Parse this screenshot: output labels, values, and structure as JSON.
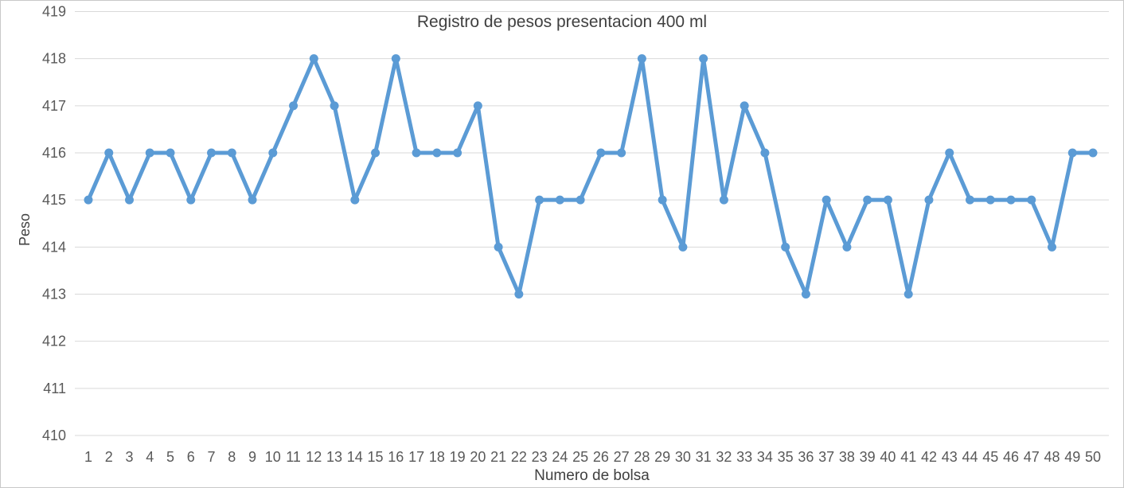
{
  "window": {
    "background_color": "#ffffff",
    "border_color": "#c9c9c9"
  },
  "chart_data": {
    "type": "line",
    "title": "Registro de pesos presentacion 400 ml",
    "xlabel": "Numero de bolsa",
    "ylabel": "Peso",
    "categories": [
      1,
      2,
      3,
      4,
      5,
      6,
      7,
      8,
      9,
      10,
      11,
      12,
      13,
      14,
      15,
      16,
      17,
      18,
      19,
      20,
      21,
      22,
      23,
      24,
      25,
      26,
      27,
      28,
      29,
      30,
      31,
      32,
      33,
      34,
      35,
      36,
      37,
      38,
      39,
      40,
      41,
      42,
      43,
      44,
      45,
      46,
      47,
      48,
      49,
      50
    ],
    "values": [
      415,
      416,
      415,
      416,
      416,
      415,
      416,
      416,
      415,
      416,
      417,
      418,
      417,
      415,
      416,
      418,
      416,
      416,
      416,
      417,
      414,
      413,
      415,
      415,
      415,
      416,
      416,
      418,
      415,
      414,
      418,
      415,
      417,
      416,
      414,
      413,
      415,
      414,
      415,
      415,
      413,
      415,
      416,
      415,
      415,
      415,
      415,
      414,
      416,
      416
    ],
    "ylim": [
      410,
      419
    ],
    "ytick_step": 1,
    "yticks": [
      410,
      411,
      412,
      413,
      414,
      415,
      416,
      417,
      418,
      419
    ],
    "grid": true,
    "legend": "none",
    "marker": "circle",
    "line_color": "#5B9BD5",
    "gridline_color": "#D9D9D9",
    "tick_label_color": "#595959",
    "title_color": "#404040"
  }
}
